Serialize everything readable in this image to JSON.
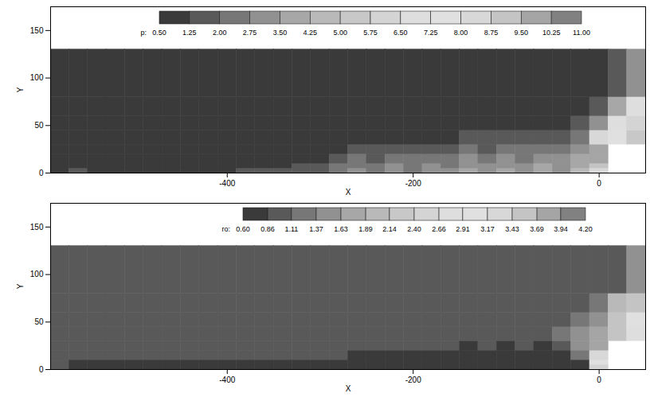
{
  "chart_data": [
    {
      "type": "heatmap",
      "x_label": "X",
      "y_label": "Y",
      "xlim": [
        -590,
        50
      ],
      "ylim": [
        0,
        175
      ],
      "xticks": [
        -400,
        -200,
        0
      ],
      "yticks": [
        0,
        50,
        100,
        150
      ],
      "x_edges": [
        -590,
        -570,
        -550,
        -530,
        -510,
        -490,
        -470,
        -450,
        -430,
        -410,
        -390,
        -370,
        -350,
        -330,
        -310,
        -290,
        -270,
        -250,
        -230,
        -210,
        -190,
        -170,
        -150,
        -130,
        -110,
        -90,
        -70,
        -50,
        -30,
        -10,
        10,
        30,
        50
      ],
      "y_edges": [
        0,
        5,
        10,
        20,
        30,
        45,
        60,
        80,
        130
      ],
      "cells": [
        [
          0.8,
          1.3,
          1.2,
          1.2,
          1.2,
          1.2,
          1.2,
          1.2,
          1.2,
          1.2,
          1.3,
          1.3,
          1.3,
          1.4,
          1.6,
          2.2,
          3.0,
          2.4,
          3.2,
          2.6,
          3.4,
          2.8,
          3.6,
          3.0,
          3.8,
          3.2,
          4.0,
          3.4,
          4.5,
          8.5,
          null,
          null
        ],
        [
          0.8,
          0.9,
          1.1,
          1.1,
          1.1,
          1.1,
          1.1,
          1.1,
          1.1,
          1.2,
          1.2,
          1.2,
          1.2,
          1.3,
          1.5,
          2.0,
          2.6,
          2.2,
          2.8,
          2.4,
          3.0,
          2.6,
          3.2,
          2.8,
          3.4,
          3.0,
          3.6,
          3.2,
          4.2,
          9.0,
          null,
          null
        ],
        [
          0.8,
          0.8,
          0.9,
          1.0,
          1.0,
          1.0,
          1.0,
          1.0,
          1.0,
          1.0,
          1.1,
          1.1,
          1.1,
          1.1,
          1.2,
          1.5,
          2.0,
          1.8,
          2.3,
          2.0,
          2.5,
          2.2,
          2.8,
          2.4,
          3.0,
          2.6,
          3.2,
          2.8,
          3.8,
          9.5,
          null,
          null
        ],
        [
          0.8,
          0.8,
          0.8,
          0.8,
          0.9,
          0.9,
          0.9,
          0.9,
          0.9,
          0.9,
          1.0,
          1.0,
          1.0,
          1.0,
          1.0,
          1.1,
          1.3,
          1.4,
          1.6,
          1.5,
          1.8,
          1.7,
          2.0,
          1.9,
          2.2,
          2.1,
          2.4,
          2.3,
          3.0,
          10.0,
          null,
          null
        ],
        [
          0.8,
          0.8,
          0.8,
          0.8,
          0.8,
          0.8,
          0.8,
          0.8,
          0.8,
          0.8,
          0.9,
          0.9,
          0.9,
          0.9,
          0.9,
          0.9,
          1.0,
          1.0,
          1.1,
          1.1,
          1.2,
          1.2,
          1.3,
          1.3,
          1.4,
          1.4,
          1.5,
          1.5,
          2.0,
          8.0,
          7.5,
          5.0
        ],
        [
          0.8,
          0.8,
          0.8,
          0.8,
          0.8,
          0.8,
          0.8,
          0.8,
          0.8,
          0.8,
          0.8,
          0.8,
          0.8,
          0.8,
          0.9,
          0.9,
          0.9,
          0.9,
          0.9,
          0.9,
          1.0,
          1.0,
          1.0,
          1.0,
          1.1,
          1.1,
          1.1,
          1.2,
          1.4,
          3.0,
          7.0,
          6.0
        ],
        [
          0.8,
          0.8,
          0.8,
          0.8,
          0.8,
          0.8,
          0.8,
          0.8,
          0.8,
          0.8,
          0.8,
          0.8,
          0.8,
          0.8,
          0.8,
          0.8,
          0.8,
          0.8,
          0.8,
          0.8,
          0.9,
          0.9,
          0.9,
          0.9,
          0.9,
          1.0,
          1.0,
          1.0,
          1.1,
          1.5,
          4.0,
          6.5
        ],
        [
          0.8,
          0.8,
          0.8,
          0.8,
          0.8,
          0.8,
          0.8,
          0.8,
          0.8,
          0.8,
          0.8,
          0.8,
          0.8,
          0.8,
          0.8,
          0.8,
          0.8,
          0.8,
          0.8,
          0.8,
          0.8,
          0.8,
          0.8,
          0.8,
          0.8,
          0.8,
          0.9,
          0.9,
          1.0,
          1.0,
          1.5,
          3.0
        ]
      ],
      "colorbar": {
        "label": "p:",
        "range": [
          0.5,
          11
        ],
        "ticks": [
          {
            "value": 0.5,
            "label": "0.50"
          },
          {
            "value": 1.25,
            "label": "1.25"
          },
          {
            "value": 2,
            "label": "2.00"
          },
          {
            "value": 2.75,
            "label": "2.75"
          },
          {
            "value": 3.5,
            "label": "3.50"
          },
          {
            "value": 4.25,
            "label": "4.25"
          },
          {
            "value": 5,
            "label": "5.00"
          },
          {
            "value": 5.75,
            "label": "5.75"
          },
          {
            "value": 6.5,
            "label": "6.50"
          },
          {
            "value": 7.25,
            "label": "7.25"
          },
          {
            "value": 8,
            "label": "8.00"
          },
          {
            "value": 8.75,
            "label": "8.75"
          },
          {
            "value": 9.5,
            "label": "9.50"
          },
          {
            "value": 10.25,
            "label": "10.25"
          },
          {
            "value": 11,
            "label": "11.00"
          }
        ]
      }
    },
    {
      "type": "heatmap",
      "x_label": "X",
      "y_label": "Y",
      "xlim": [
        -590,
        50
      ],
      "ylim": [
        0,
        175
      ],
      "xticks": [
        -400,
        -200,
        0
      ],
      "yticks": [
        0,
        50,
        100,
        150
      ],
      "x_edges": [
        -590,
        -570,
        -550,
        -530,
        -510,
        -490,
        -470,
        -450,
        -430,
        -410,
        -390,
        -370,
        -350,
        -330,
        -310,
        -290,
        -270,
        -250,
        -230,
        -210,
        -190,
        -170,
        -150,
        -130,
        -110,
        -90,
        -70,
        -50,
        -30,
        -10,
        10,
        30,
        50
      ],
      "y_edges": [
        0,
        5,
        10,
        20,
        30,
        45,
        60,
        80,
        130
      ],
      "cells": [
        [
          0.9,
          0.65,
          0.65,
          0.65,
          0.65,
          0.65,
          0.65,
          0.65,
          0.65,
          0.65,
          0.65,
          0.65,
          0.65,
          0.65,
          0.65,
          0.62,
          0.65,
          0.62,
          0.65,
          0.62,
          0.65,
          0.62,
          0.65,
          0.62,
          0.65,
          0.62,
          0.65,
          0.62,
          0.7,
          2.5,
          null,
          null
        ],
        [
          1.0,
          0.8,
          0.7,
          0.7,
          0.7,
          0.7,
          0.7,
          0.72,
          0.75,
          0.8,
          0.85,
          0.85,
          0.85,
          0.8,
          0.75,
          0.7,
          0.65,
          0.7,
          0.65,
          0.7,
          0.65,
          0.7,
          0.65,
          0.7,
          0.65,
          0.7,
          0.65,
          0.7,
          0.8,
          3.0,
          null,
          null
        ],
        [
          1.0,
          1.0,
          0.95,
          0.9,
          0.95,
          0.95,
          1.0,
          1.0,
          1.0,
          1.0,
          1.0,
          1.0,
          1.0,
          1.0,
          0.95,
          0.9,
          0.8,
          0.85,
          0.75,
          0.8,
          0.75,
          0.8,
          0.7,
          0.8,
          0.7,
          0.8,
          0.7,
          0.8,
          1.2,
          3.4,
          null,
          null
        ],
        [
          1.0,
          1.0,
          1.0,
          1.0,
          1.0,
          1.0,
          1.0,
          1.0,
          1.0,
          1.0,
          1.0,
          1.0,
          1.0,
          1.0,
          1.0,
          1.0,
          1.0,
          1.0,
          0.95,
          1.0,
          0.9,
          1.0,
          0.85,
          1.0,
          0.8,
          1.0,
          0.8,
          1.0,
          1.4,
          3.8,
          null,
          null
        ],
        [
          1.0,
          1.0,
          1.0,
          1.0,
          1.0,
          1.0,
          1.0,
          1.0,
          1.0,
          1.0,
          1.0,
          1.0,
          1.0,
          1.0,
          1.0,
          1.0,
          1.0,
          1.0,
          1.0,
          1.0,
          1.0,
          1.0,
          1.05,
          1.05,
          1.1,
          1.1,
          1.1,
          1.2,
          1.4,
          3.8,
          3.5,
          2.8
        ],
        [
          1.0,
          1.0,
          1.0,
          1.0,
          1.0,
          1.0,
          1.0,
          1.0,
          1.0,
          1.0,
          1.0,
          1.0,
          1.0,
          1.0,
          1.0,
          1.0,
          1.0,
          1.0,
          1.0,
          1.0,
          1.0,
          1.0,
          1.0,
          1.0,
          1.0,
          1.05,
          1.05,
          1.1,
          1.2,
          1.6,
          3.5,
          3.0
        ],
        [
          1.0,
          1.0,
          1.0,
          1.0,
          1.0,
          1.0,
          1.0,
          1.0,
          1.0,
          1.0,
          1.0,
          1.0,
          1.0,
          1.0,
          1.0,
          1.0,
          1.0,
          1.0,
          1.0,
          1.0,
          1.0,
          1.0,
          1.0,
          1.0,
          1.0,
          1.0,
          1.0,
          1.05,
          1.1,
          1.2,
          2.0,
          3.5
        ],
        [
          1.0,
          1.0,
          1.0,
          1.0,
          1.0,
          1.0,
          1.0,
          1.0,
          1.0,
          1.0,
          1.0,
          1.0,
          1.0,
          1.0,
          1.0,
          1.0,
          1.0,
          1.0,
          1.0,
          1.0,
          1.0,
          1.0,
          1.0,
          1.0,
          1.0,
          1.0,
          1.0,
          1.0,
          1.0,
          1.0,
          1.1,
          1.4
        ]
      ],
      "colorbar": {
        "label": "ro:",
        "range": [
          0.6,
          4.2
        ],
        "ticks": [
          {
            "value": 0.6,
            "label": "0.60"
          },
          {
            "value": 0.86,
            "label": "0.86"
          },
          {
            "value": 1.11,
            "label": "1.11"
          },
          {
            "value": 1.37,
            "label": "1.37"
          },
          {
            "value": 1.63,
            "label": "1.63"
          },
          {
            "value": 1.89,
            "label": "1.89"
          },
          {
            "value": 2.14,
            "label": "2.14"
          },
          {
            "value": 2.4,
            "label": "2.40"
          },
          {
            "value": 2.66,
            "label": "2.66"
          },
          {
            "value": 2.91,
            "label": "2.91"
          },
          {
            "value": 3.17,
            "label": "3.17"
          },
          {
            "value": 3.43,
            "label": "3.43"
          },
          {
            "value": 3.69,
            "label": "3.69"
          },
          {
            "value": 3.94,
            "label": "3.94"
          },
          {
            "value": 4.2,
            "label": "4.20"
          }
        ]
      }
    }
  ]
}
